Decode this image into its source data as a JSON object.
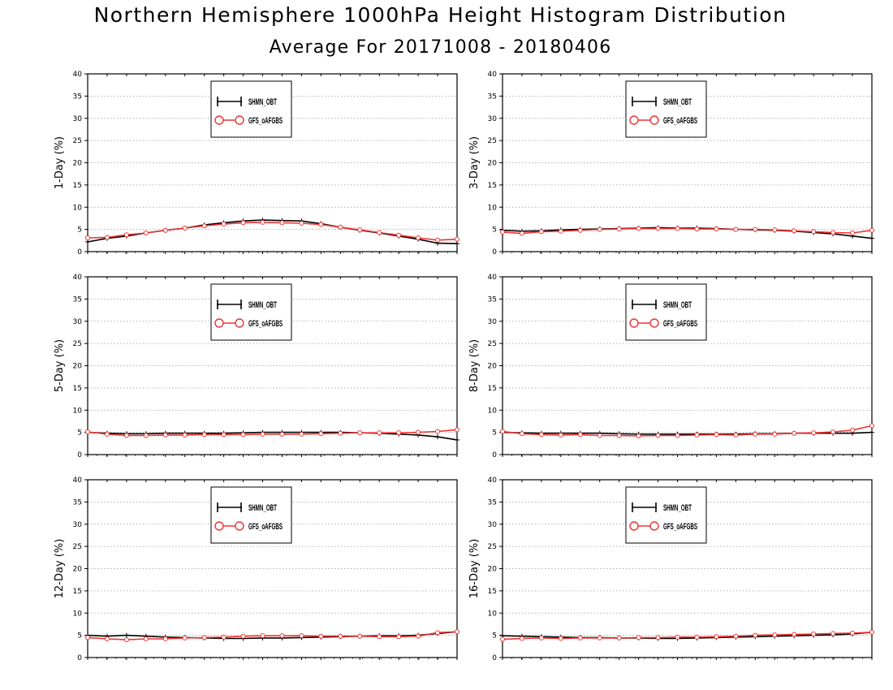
{
  "title": "Northern Hemisphere 1000hPa Height Histogram Distribution",
  "subtitle": "Average For 20171008 - 20180406",
  "colors": {
    "series_a": "#000000",
    "series_b": "#ee3333",
    "grid": "#999999"
  },
  "chart_data": [
    {
      "type": "line",
      "ylabel": "1-Day (%)",
      "ylim": [
        0,
        40
      ],
      "yticks": [
        0,
        5,
        10,
        15,
        20,
        25,
        30,
        35,
        40
      ],
      "grid": true,
      "legend_position": "top-center",
      "series": [
        {
          "name": "SHMN_OBT",
          "marker": "plus",
          "values": [
            2.2,
            3.0,
            3.5,
            4.2,
            4.8,
            5.3,
            6.0,
            6.5,
            6.9,
            7.1,
            7.0,
            6.9,
            6.3,
            5.5,
            4.8,
            4.2,
            3.5,
            2.8,
            1.9,
            1.8
          ]
        },
        {
          "name": "GFS_oAFGBS",
          "marker": "circle",
          "values": [
            3.1,
            3.2,
            3.8,
            4.2,
            4.8,
            5.3,
            5.8,
            6.2,
            6.5,
            6.6,
            6.5,
            6.4,
            6.1,
            5.5,
            4.9,
            4.3,
            3.7,
            3.1,
            2.6,
            2.8
          ]
        }
      ]
    },
    {
      "type": "line",
      "ylabel": "3-Day (%)",
      "ylim": [
        0,
        40
      ],
      "yticks": [
        0,
        5,
        10,
        15,
        20,
        25,
        30,
        35,
        40
      ],
      "grid": true,
      "legend_position": "top-center",
      "series": [
        {
          "name": "SHMN_OBT",
          "marker": "plus",
          "values": [
            4.8,
            4.6,
            4.7,
            4.9,
            5.0,
            5.1,
            5.2,
            5.3,
            5.4,
            5.3,
            5.3,
            5.2,
            5.0,
            4.9,
            4.8,
            4.6,
            4.3,
            4.0,
            3.5,
            3.0
          ]
        },
        {
          "name": "GFS_oAFGBS",
          "marker": "circle",
          "values": [
            4.4,
            4.1,
            4.5,
            4.6,
            4.8,
            5.0,
            5.1,
            5.2,
            5.2,
            5.2,
            5.1,
            5.1,
            5.0,
            5.0,
            4.9,
            4.7,
            4.5,
            4.3,
            4.2,
            4.8
          ]
        }
      ]
    },
    {
      "type": "line",
      "ylabel": "5-Day (%)",
      "ylim": [
        0,
        40
      ],
      "yticks": [
        0,
        5,
        10,
        15,
        20,
        25,
        30,
        35,
        40
      ],
      "grid": true,
      "legend_position": "top-center",
      "series": [
        {
          "name": "SHMN_OBT",
          "marker": "plus",
          "values": [
            5.0,
            4.8,
            4.7,
            4.7,
            4.8,
            4.8,
            4.8,
            4.8,
            4.9,
            5.0,
            5.0,
            5.0,
            5.0,
            5.0,
            4.9,
            4.8,
            4.6,
            4.4,
            4.0,
            3.3
          ]
        },
        {
          "name": "GFS_oAFGBS",
          "marker": "circle",
          "values": [
            5.1,
            4.6,
            4.3,
            4.3,
            4.4,
            4.4,
            4.5,
            4.5,
            4.5,
            4.6,
            4.6,
            4.6,
            4.7,
            4.8,
            4.9,
            4.9,
            4.9,
            5.0,
            5.2,
            5.6
          ]
        }
      ]
    },
    {
      "type": "line",
      "ylabel": "8-Day (%)",
      "ylim": [
        0,
        40
      ],
      "yticks": [
        0,
        5,
        10,
        15,
        20,
        25,
        30,
        35,
        40
      ],
      "grid": true,
      "legend_position": "top-center",
      "series": [
        {
          "name": "SHMN_OBT",
          "marker": "plus",
          "values": [
            5.0,
            4.9,
            4.8,
            4.8,
            4.8,
            4.8,
            4.7,
            4.6,
            4.6,
            4.6,
            4.6,
            4.6,
            4.6,
            4.7,
            4.7,
            4.8,
            4.8,
            4.8,
            4.8,
            5.0
          ]
        },
        {
          "name": "GFS_oAFGBS",
          "marker": "circle",
          "values": [
            5.2,
            4.7,
            4.5,
            4.4,
            4.5,
            4.3,
            4.3,
            4.2,
            4.3,
            4.3,
            4.4,
            4.5,
            4.4,
            4.6,
            4.6,
            4.8,
            4.9,
            5.1,
            5.5,
            6.5
          ]
        }
      ]
    },
    {
      "type": "line",
      "ylabel": "12-Day (%)",
      "ylim": [
        0,
        40
      ],
      "yticks": [
        0,
        5,
        10,
        15,
        20,
        25,
        30,
        35,
        40
      ],
      "grid": true,
      "legend_position": "top-center",
      "series": [
        {
          "name": "SHMN_OBT",
          "marker": "plus",
          "values": [
            5.0,
            4.8,
            5.0,
            4.8,
            4.6,
            4.5,
            4.4,
            4.3,
            4.3,
            4.4,
            4.4,
            4.5,
            4.6,
            4.7,
            4.8,
            4.9,
            4.9,
            5.0,
            5.4,
            5.8
          ]
        },
        {
          "name": "GFS_oAFGBS",
          "marker": "circle",
          "values": [
            4.5,
            4.2,
            4.0,
            4.2,
            4.2,
            4.4,
            4.5,
            4.6,
            4.8,
            4.9,
            4.9,
            4.9,
            4.8,
            4.8,
            4.8,
            4.7,
            4.7,
            4.8,
            5.6,
            5.8
          ]
        }
      ]
    },
    {
      "type": "line",
      "ylabel": "16-Day (%)",
      "ylim": [
        0,
        40
      ],
      "yticks": [
        0,
        5,
        10,
        15,
        20,
        25,
        30,
        35,
        40
      ],
      "grid": true,
      "legend_position": "top-center",
      "series": [
        {
          "name": "SHMN_OBT",
          "marker": "plus",
          "values": [
            4.9,
            4.8,
            4.7,
            4.6,
            4.5,
            4.5,
            4.4,
            4.4,
            4.3,
            4.3,
            4.4,
            4.5,
            4.6,
            4.7,
            4.8,
            4.9,
            5.0,
            5.1,
            5.3,
            5.7
          ]
        },
        {
          "name": "GFS_oAFGBS",
          "marker": "circle",
          "values": [
            4.1,
            4.3,
            4.4,
            4.3,
            4.4,
            4.4,
            4.4,
            4.5,
            4.5,
            4.6,
            4.6,
            4.7,
            4.8,
            5.0,
            5.1,
            5.2,
            5.3,
            5.4,
            5.5,
            5.7
          ]
        }
      ]
    }
  ]
}
